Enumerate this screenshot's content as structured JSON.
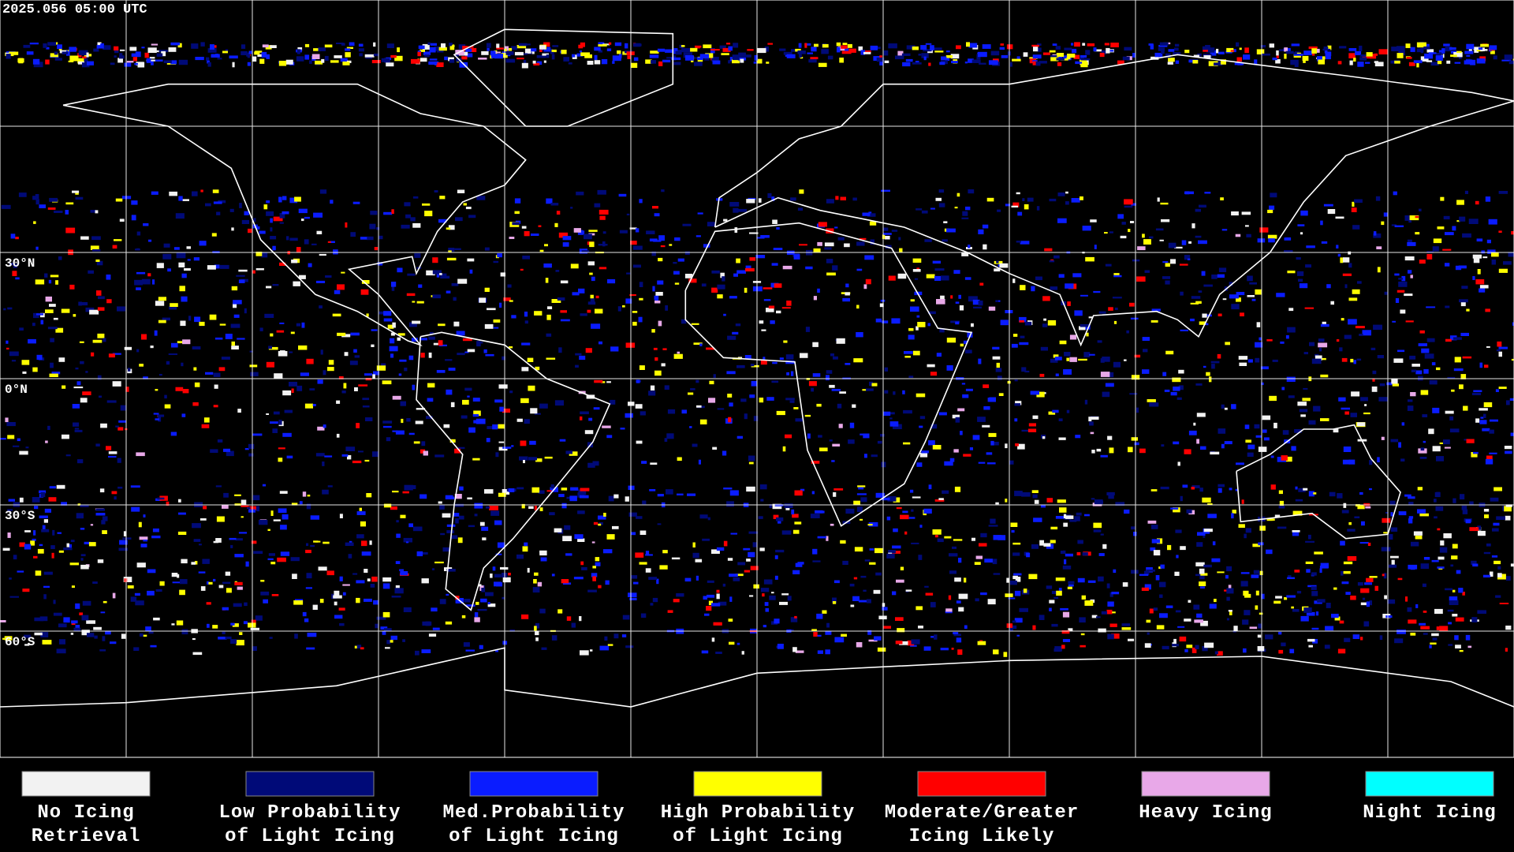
{
  "timestamp": "2025.056 05:00 UTC",
  "latitude_labels": [
    "30°N",
    "0°N",
    "30°S",
    "60°S"
  ],
  "legend": [
    {
      "color": "#f2f2f2",
      "lines": [
        "No Icing",
        "Retrieval"
      ]
    },
    {
      "color": "#000a78",
      "lines": [
        "Low Probability",
        "of Light Icing"
      ]
    },
    {
      "color": "#0a1cff",
      "lines": [
        "Med.Probability",
        "of Light Icing"
      ]
    },
    {
      "color": "#ffff00",
      "lines": [
        "High Probability",
        "of Light Icing"
      ]
    },
    {
      "color": "#ff0000",
      "lines": [
        "Moderate/Greater",
        "Icing Likely"
      ]
    },
    {
      "color": "#e8a8e8",
      "lines": [
        "Heavy Icing"
      ]
    },
    {
      "color": "#00ffff",
      "lines": [
        "Night Icing"
      ]
    }
  ]
}
